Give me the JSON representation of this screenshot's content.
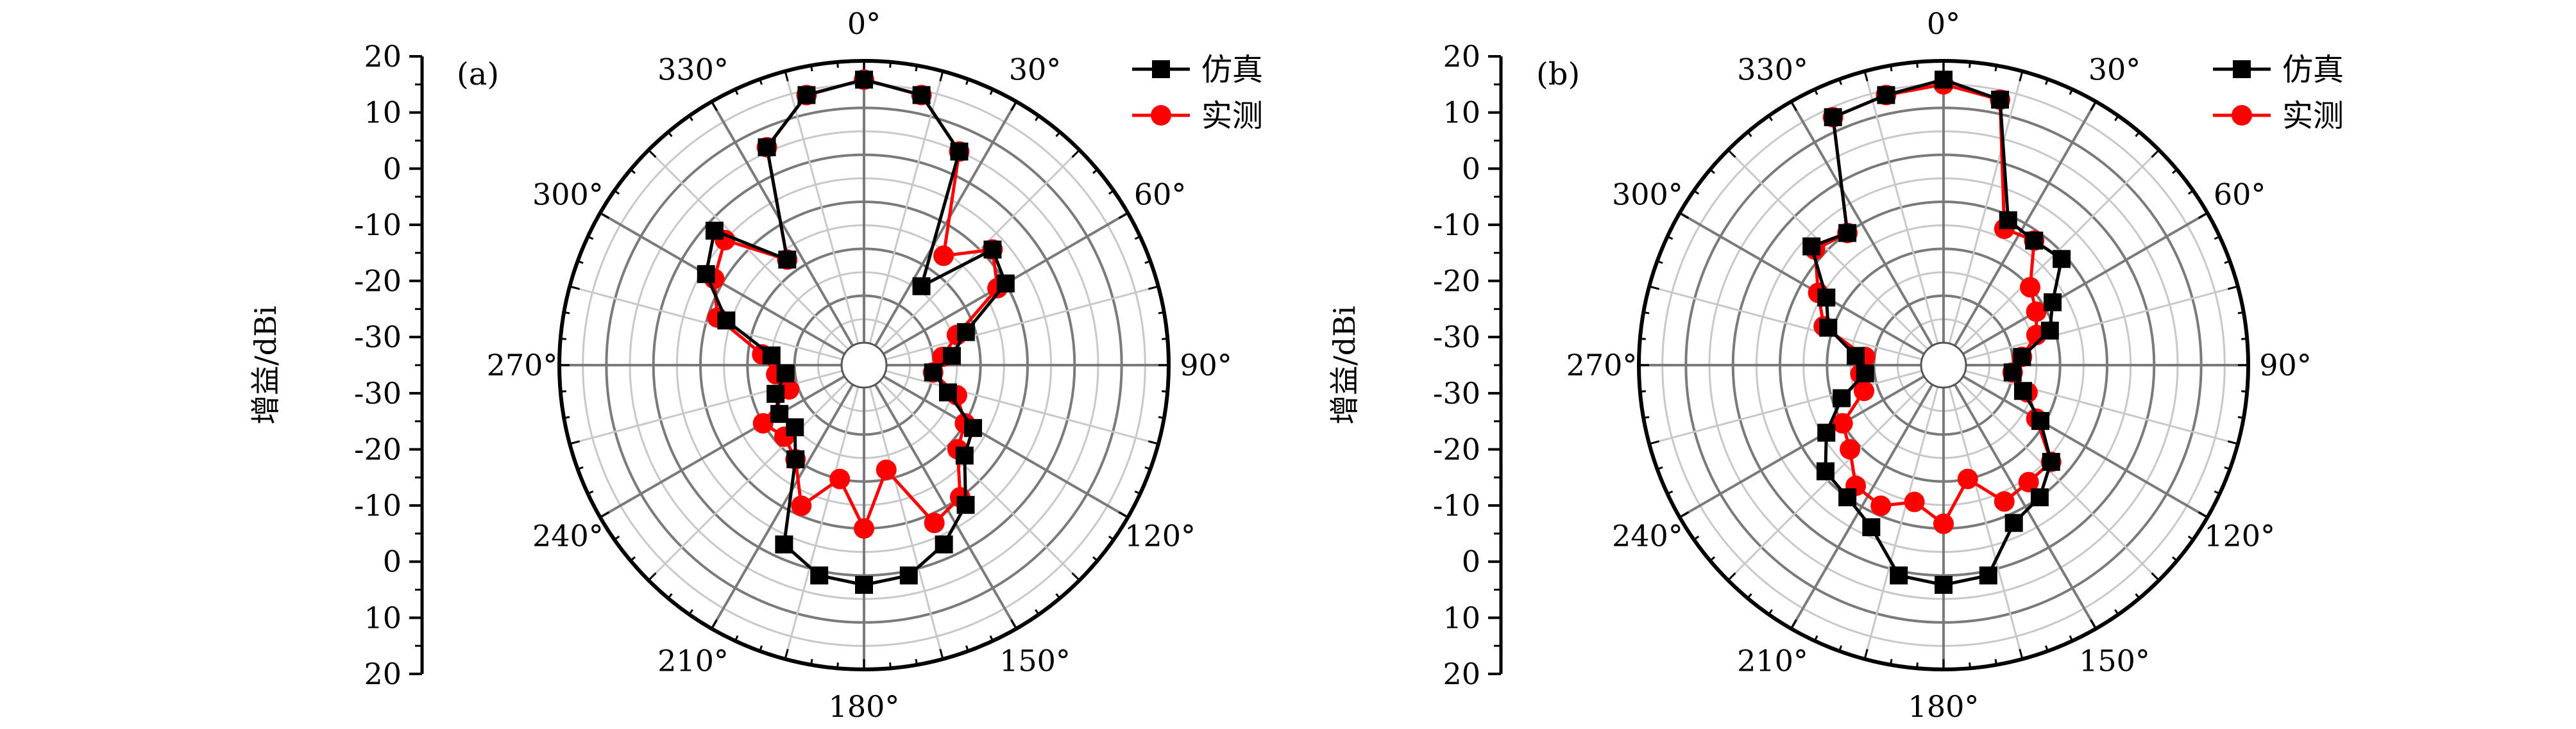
{
  "chart_data": [
    {
      "type": "polar",
      "panel_label": "(a)",
      "ylabel": "增益/dBi",
      "radial_ticks": [
        "20",
        "10",
        "0",
        "-10",
        "-20",
        "-30",
        "-30",
        "-20",
        "-10",
        "0",
        "10",
        "20"
      ],
      "radial_range": [
        -40,
        20
      ],
      "angle_labels": [
        "0°",
        "30°",
        "60°",
        "90°",
        "120°",
        "150°",
        "180°",
        "210°",
        "240°",
        "270°",
        "300°",
        "330°"
      ],
      "legend": [
        "仿真",
        "实测"
      ],
      "series": [
        {
          "name": "仿真",
          "color": "#000000",
          "marker": "square",
          "points": [
            [
              0,
              16
            ],
            [
              12,
              14
            ],
            [
              24,
              5
            ],
            [
              36,
              -24
            ],
            [
              48,
              -8
            ],
            [
              60,
              -10
            ],
            [
              72,
              -22
            ],
            [
              84,
              -26
            ],
            [
              96,
              -30
            ],
            [
              108,
              -26
            ],
            [
              120,
              -18
            ],
            [
              132,
              -16
            ],
            [
              144,
              -8
            ],
            [
              156,
              -3
            ],
            [
              168,
              1
            ],
            [
              180,
              2
            ],
            [
              192,
              1
            ],
            [
              204,
              -3
            ],
            [
              216,
              -20
            ],
            [
              228,
              -25
            ],
            [
              240,
              -24
            ],
            [
              252,
              -25
            ],
            [
              264,
              -28
            ],
            [
              276,
              -25
            ],
            [
              288,
              -14
            ],
            [
              300,
              -6
            ],
            [
              312,
              -2
            ],
            [
              324,
              -17
            ],
            [
              336,
              6
            ],
            [
              348,
              14
            ]
          ]
        },
        {
          "name": "实测",
          "color": "#ff0000",
          "marker": "circle",
          "points": [
            [
              0,
              16
            ],
            [
              12,
              14
            ],
            [
              24,
              5
            ],
            [
              36,
              -16
            ],
            [
              48,
              -8
            ],
            [
              60,
              -12
            ],
            [
              72,
              -24
            ],
            [
              84,
              -28
            ],
            [
              96,
              -30
            ],
            [
              108,
              -24
            ],
            [
              120,
              -20
            ],
            [
              132,
              -18
            ],
            [
              144,
              -10
            ],
            [
              156,
              -8
            ],
            [
              168,
              -22
            ],
            [
              180,
              -10
            ],
            [
              192,
              -20
            ],
            [
              204,
              -12
            ],
            [
              216,
              -20
            ],
            [
              228,
              -22
            ],
            [
              240,
              -20
            ],
            [
              252,
              -28
            ],
            [
              264,
              -26
            ],
            [
              276,
              -23
            ],
            [
              288,
              -12
            ],
            [
              300,
              -8
            ],
            [
              312,
              -5
            ],
            [
              324,
              -17
            ],
            [
              336,
              6
            ],
            [
              348,
              14
            ]
          ]
        }
      ]
    },
    {
      "type": "polar",
      "panel_label": "(b)",
      "ylabel": "增益/dBi",
      "radial_ticks": [
        "20",
        "10",
        "0",
        "-10",
        "-20",
        "-30",
        "-30",
        "-20",
        "-10",
        "0",
        "10",
        "20"
      ],
      "radial_range": [
        -40,
        20
      ],
      "angle_labels": [
        "0°",
        "30°",
        "60°",
        "90°",
        "120°",
        "150°",
        "180°",
        "210°",
        "240°",
        "270°",
        "300°",
        "330°"
      ],
      "legend": [
        "仿真",
        "实测"
      ],
      "series": [
        {
          "name": "仿真",
          "color": "#000000",
          "marker": "square",
          "points": [
            [
              0,
              16
            ],
            [
              12,
              13
            ],
            [
              24,
              -11
            ],
            [
              36,
              -12
            ],
            [
              48,
              -11
            ],
            [
              60,
              -18
            ],
            [
              72,
              -21
            ],
            [
              84,
              -28
            ],
            [
              96,
              -30
            ],
            [
              108,
              -27
            ],
            [
              120,
              -21
            ],
            [
              132,
              -14
            ],
            [
              144,
              -10
            ],
            [
              156,
              -8
            ],
            [
              168,
              1
            ],
            [
              180,
              2
            ],
            [
              192,
              1
            ],
            [
              204,
              -7
            ],
            [
              216,
              -10
            ],
            [
              228,
              -11
            ],
            [
              240,
              -16
            ],
            [
              252,
              -22
            ],
            [
              264,
              -28
            ],
            [
              276,
              -26
            ],
            [
              288,
              -19
            ],
            [
              300,
              -16
            ],
            [
              312,
              -7
            ],
            [
              324,
              -10
            ],
            [
              336,
              13
            ],
            [
              348,
              14
            ]
          ]
        },
        {
          "name": "实测",
          "color": "#ff0000",
          "marker": "circle",
          "points": [
            [
              0,
              15
            ],
            [
              12,
              13
            ],
            [
              24,
              -13
            ],
            [
              36,
              -12
            ],
            [
              48,
              -20
            ],
            [
              60,
              -22
            ],
            [
              72,
              -24
            ],
            [
              84,
              -28
            ],
            [
              96,
              -30
            ],
            [
              108,
              -26
            ],
            [
              120,
              -22
            ],
            [
              132,
              -14
            ],
            [
              144,
              -14
            ],
            [
              156,
              -13
            ],
            [
              168,
              -20
            ],
            [
              180,
              -11
            ],
            [
              192,
              -15
            ],
            [
              204,
              -12
            ],
            [
              216,
              -13
            ],
            [
              228,
              -18
            ],
            [
              240,
              -20
            ],
            [
              252,
              -27
            ],
            [
              264,
              -27
            ],
            [
              276,
              -28
            ],
            [
              288,
              -18
            ],
            [
              300,
              -14
            ],
            [
              312,
              -8
            ],
            [
              324,
              -10
            ],
            [
              336,
              13
            ],
            [
              348,
              14
            ]
          ]
        }
      ]
    }
  ]
}
